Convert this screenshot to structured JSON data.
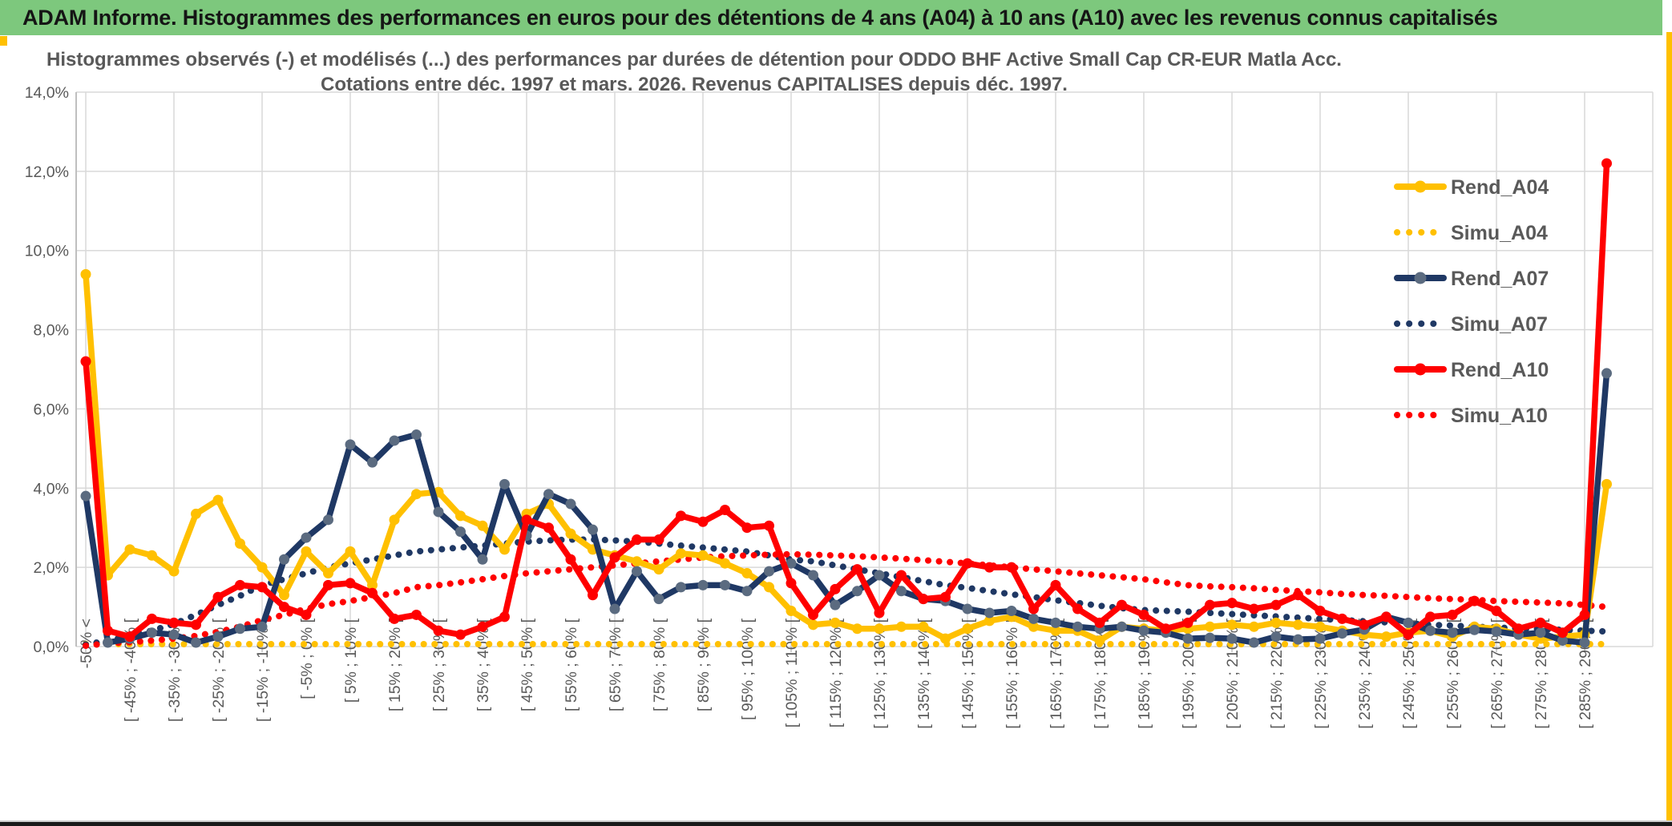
{
  "header": {
    "title": "ADAM Informe. Histogrammes des performances en euros pour des détentions de 4 ans (A04) à 10 ans (A10) avec les revenus connus capitalisés"
  },
  "accents": {
    "header_bg": "#7DC87D",
    "edge_accent": "#FFC000",
    "bottom_bar": "#1a1a1a",
    "gridline": "#D9D9D9",
    "axis": "#BFBFBF",
    "text": "#595959"
  },
  "chart_data": {
    "type": "line",
    "title_line1": "Histogrammes observés (-) et modélisés (...) des performances par durées de détention pour ODDO BHF Active Small Cap CR-EUR Matla Acc.",
    "title_line2": "Cotations entre déc. 1997 et mars. 2026. Revenus CAPITALISES depuis déc. 1997.",
    "grid": "on",
    "legend_position": "right",
    "y_axis": {
      "min": 0,
      "max": 14,
      "unit": "%",
      "ticks": [
        "0,0%",
        "2,0%",
        "4,0%",
        "6,0%",
        "8,0%",
        "10,0%",
        "12,0%",
        "14,0%"
      ]
    },
    "x_axis": {
      "note": "70 bins of 5% width; every second bin is labelled; first and last bins are catch-all bins",
      "labels": [
        "-50% <",
        "[ -45% ; -40% [",
        "[ -35% ; -30% [",
        "[ -25% ; -20% [",
        "[ -15% ; -10% [",
        "[ -5% ; 0% [",
        "[ 5% ; 10% [",
        "[ 15% ; 20% [",
        "[ 25% ; 30% [",
        "[ 35% ; 40% [",
        "[ 45% ; 50% [",
        "[ 55% ; 60% [",
        "[ 65% ; 70% [",
        "[ 75% ; 80% [",
        "[ 85% ; 90% [",
        "[ 95% ; 100% [",
        "[ 105% ; 110% [",
        "[ 115% ; 120% [",
        "[ 125% ; 130% [",
        "[ 135% ; 140% [",
        "[ 145% ; 150% [",
        "[ 155% ; 160% [",
        "[ 165% ; 170% [",
        "[ 175% ; 180% [",
        "[ 185% ; 190% [",
        "[ 195% ; 200% [",
        "[ 205% ; 210% [",
        "[ 215% ; 220% [",
        "[ 225% ; 230% [",
        "[ 235% ; 240% [",
        "[ 245% ; 250% [",
        "[ 255% ; 260% [",
        "[ 265% ; 270% [",
        "[ 275% ; 280% [",
        "[ 285% ; 290% ["
      ]
    },
    "series": [
      {
        "name": "Rend_A04",
        "style": "solid",
        "color": "#FFC000",
        "marker": "#FFC000",
        "values": [
          9.4,
          1.8,
          2.45,
          2.3,
          1.9,
          3.35,
          3.7,
          2.6,
          2.0,
          1.3,
          2.4,
          1.85,
          2.4,
          1.55,
          3.2,
          3.85,
          3.9,
          3.3,
          3.05,
          2.45,
          3.35,
          3.6,
          2.85,
          2.45,
          2.3,
          2.15,
          1.95,
          2.35,
          2.3,
          2.1,
          1.85,
          1.5,
          0.9,
          0.55,
          0.6,
          0.45,
          0.45,
          0.5,
          0.5,
          0.2,
          0.45,
          0.65,
          0.75,
          0.5,
          0.4,
          0.4,
          0.15,
          0.5,
          0.45,
          0.4,
          0.45,
          0.5,
          0.55,
          0.5,
          0.6,
          0.55,
          0.5,
          0.4,
          0.3,
          0.25,
          0.35,
          0.4,
          0.25,
          0.5,
          0.45,
          0.3,
          0.2,
          0.25,
          0.3,
          4.1
        ]
      },
      {
        "name": "Simu_A04",
        "style": "dotted",
        "color": "#FFC000",
        "values": [
          0.06,
          0.06,
          0.06,
          0.06,
          0.06,
          0.06,
          0.06,
          0.06,
          0.06,
          0.06,
          0.06,
          0.06,
          0.06,
          0.06,
          0.06,
          0.06,
          0.06,
          0.06,
          0.06,
          0.06,
          0.06,
          0.06,
          0.06,
          0.06,
          0.06,
          0.06,
          0.06,
          0.06,
          0.06,
          0.06,
          0.06,
          0.06,
          0.06,
          0.06,
          0.06,
          0.06,
          0.06,
          0.06,
          0.06,
          0.06,
          0.06,
          0.06,
          0.06,
          0.06,
          0.06,
          0.06,
          0.06,
          0.06,
          0.06,
          0.06,
          0.06,
          0.06,
          0.06,
          0.06,
          0.06,
          0.06,
          0.06,
          0.06,
          0.06,
          0.06,
          0.06,
          0.06,
          0.06,
          0.06,
          0.06,
          0.06,
          0.06,
          0.06,
          0.06,
          0.06
        ]
      },
      {
        "name": "Rend_A07",
        "style": "solid",
        "color": "#1F3864",
        "marker": "#5B6B80",
        "values": [
          3.8,
          0.1,
          0.2,
          0.35,
          0.3,
          0.1,
          0.25,
          0.45,
          0.5,
          2.2,
          2.75,
          3.2,
          5.1,
          4.65,
          5.2,
          5.35,
          3.4,
          2.9,
          2.2,
          4.1,
          2.8,
          3.85,
          3.6,
          2.95,
          0.95,
          1.9,
          1.2,
          1.5,
          1.55,
          1.55,
          1.4,
          1.9,
          2.1,
          1.8,
          1.05,
          1.4,
          1.8,
          1.4,
          1.2,
          1.15,
          0.95,
          0.85,
          0.9,
          0.7,
          0.6,
          0.5,
          0.45,
          0.5,
          0.4,
          0.35,
          0.2,
          0.22,
          0.2,
          0.1,
          0.25,
          0.18,
          0.2,
          0.33,
          0.43,
          0.75,
          0.6,
          0.4,
          0.35,
          0.42,
          0.38,
          0.3,
          0.35,
          0.15,
          0.1,
          6.9
        ]
      },
      {
        "name": "Simu_A07",
        "style": "dotted",
        "color": "#1F3864",
        "values": [
          0.05,
          0.15,
          0.27,
          0.4,
          0.57,
          0.8,
          1.05,
          1.28,
          1.55,
          1.7,
          1.85,
          2.0,
          2.1,
          2.2,
          2.3,
          2.4,
          2.45,
          2.5,
          2.55,
          2.6,
          2.65,
          2.68,
          2.7,
          2.7,
          2.68,
          2.65,
          2.6,
          2.55,
          2.5,
          2.45,
          2.4,
          2.3,
          2.2,
          2.15,
          2.05,
          1.95,
          1.85,
          1.75,
          1.65,
          1.55,
          1.48,
          1.4,
          1.32,
          1.25,
          1.17,
          1.1,
          1.03,
          0.97,
          0.92,
          0.9,
          0.88,
          0.85,
          0.82,
          0.79,
          0.76,
          0.73,
          0.7,
          0.67,
          0.64,
          0.61,
          0.58,
          0.55,
          0.53,
          0.5,
          0.48,
          0.46,
          0.44,
          0.42,
          0.4,
          0.38
        ]
      },
      {
        "name": "Rend_A10",
        "style": "solid",
        "color": "#FF0000",
        "marker": "#FF0000",
        "values": [
          7.2,
          0.4,
          0.25,
          0.7,
          0.6,
          0.55,
          1.25,
          1.55,
          1.5,
          1.0,
          0.8,
          1.55,
          1.6,
          1.35,
          0.7,
          0.8,
          0.4,
          0.3,
          0.5,
          0.75,
          3.2,
          3.0,
          2.2,
          1.3,
          2.25,
          2.7,
          2.7,
          3.3,
          3.15,
          3.45,
          3.0,
          3.05,
          1.6,
          0.8,
          1.45,
          1.95,
          0.85,
          1.8,
          1.2,
          1.25,
          2.1,
          2.0,
          2.0,
          0.95,
          1.55,
          0.95,
          0.6,
          1.05,
          0.8,
          0.45,
          0.6,
          1.05,
          1.1,
          0.95,
          1.05,
          1.3,
          0.9,
          0.7,
          0.55,
          0.75,
          0.3,
          0.75,
          0.8,
          1.15,
          0.9,
          0.45,
          0.6,
          0.35,
          0.8,
          12.2
        ]
      },
      {
        "name": "Simu_A10",
        "style": "dotted",
        "color": "#FF0000",
        "values": [
          0.02,
          0.08,
          0.11,
          0.15,
          0.2,
          0.27,
          0.37,
          0.5,
          0.67,
          0.8,
          0.95,
          1.07,
          1.15,
          1.25,
          1.35,
          1.5,
          1.55,
          1.62,
          1.7,
          1.78,
          1.85,
          1.9,
          1.95,
          2.0,
          2.05,
          2.1,
          2.15,
          2.2,
          2.25,
          2.28,
          2.3,
          2.32,
          2.33,
          2.32,
          2.3,
          2.28,
          2.25,
          2.22,
          2.18,
          2.14,
          2.1,
          2.05,
          2.0,
          1.95,
          1.9,
          1.85,
          1.8,
          1.75,
          1.7,
          1.62,
          1.55,
          1.52,
          1.5,
          1.47,
          1.43,
          1.4,
          1.37,
          1.33,
          1.3,
          1.28,
          1.25,
          1.22,
          1.2,
          1.18,
          1.15,
          1.13,
          1.11,
          1.09,
          1.05,
          1.0
        ]
      }
    ]
  }
}
